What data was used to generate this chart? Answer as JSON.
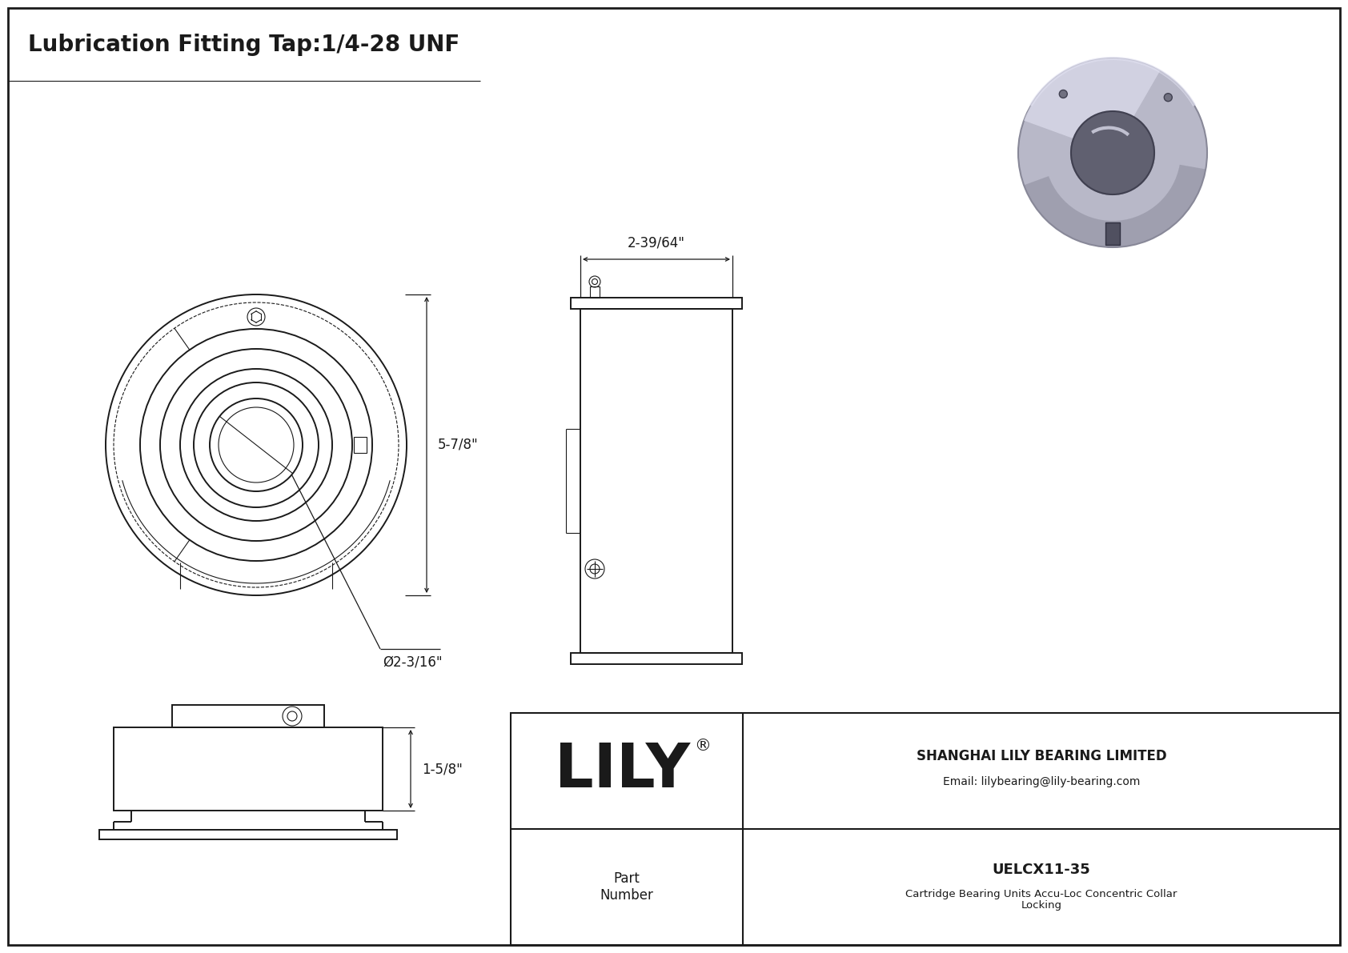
{
  "title": "Lubrication Fitting Tap:1/4-28 UNF",
  "bg_color": "#ffffff",
  "line_color": "#1a1a1a",
  "title_fontsize": 20,
  "dim_fontsize": 12,
  "dim_57_8": "5-7/8\"",
  "dim_phi": "Ø2-3/16\"",
  "dim_239_64": "2-39/64\"",
  "dim_15_8": "1-5/8\"",
  "part_number": "UELCX11-35",
  "company": "SHANGHAI LILY BEARING LIMITED",
  "email": "Email: lilybearing@lily-bearing.com",
  "part_label": "Part\nNumber",
  "part_desc": "Cartridge Bearing Units Accu-Loc Concentric Collar\nLocking",
  "lily_text": "LILY",
  "registered": "®"
}
